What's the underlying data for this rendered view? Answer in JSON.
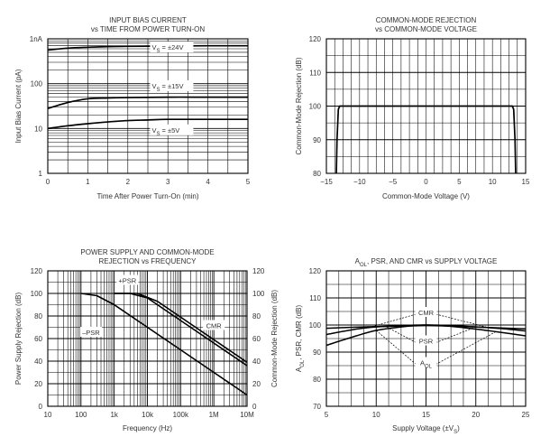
{
  "chart_data": [
    {
      "id": "bias",
      "type": "line",
      "title": [
        "INPUT BIAS CURRENT",
        "vs TIME FROM POWER TURN-ON"
      ],
      "xlabel": "Time After Power Turn-On (min)",
      "ylabel": "Input Bias Current (pA)",
      "x_scale": "linear",
      "y_scale": "log",
      "xlim": [
        0,
        5
      ],
      "ylim": [
        1,
        1000
      ],
      "x_ticks": [
        "0",
        "1",
        "2",
        "3",
        "4",
        "5"
      ],
      "y_tick_values": [
        1,
        10,
        100,
        1000
      ],
      "y_ticks": [
        "1",
        "10",
        "100",
        "1nA"
      ],
      "grid": true,
      "series": [
        {
          "name": "V_S = ±24V",
          "label": "V",
          "sub": "S",
          "rest": " = ±24V",
          "label_at": [
            2.6,
            600
          ],
          "color": "#000000",
          "x": [
            0,
            0.5,
            1,
            1.5,
            2,
            3,
            4,
            5
          ],
          "y": [
            560,
            620,
            650,
            670,
            680,
            690,
            700,
            700
          ]
        },
        {
          "name": "V_S = ±15V",
          "label": "V",
          "sub": "S",
          "rest": " = ±15V",
          "label_at": [
            2.6,
            82
          ],
          "color": "#000000",
          "x": [
            0,
            0.5,
            1,
            1.5,
            2,
            3,
            4,
            5
          ],
          "y": [
            28,
            38,
            46,
            48,
            49,
            50,
            50,
            50
          ]
        },
        {
          "name": "V_S = ±5V",
          "label": "V",
          "sub": "S",
          "rest": " = ±5V",
          "label_at": [
            2.6,
            8.5
          ],
          "color": "#000000",
          "x": [
            0,
            0.5,
            1,
            1.5,
            2,
            2.5,
            3,
            4,
            5
          ],
          "y": [
            10,
            11.5,
            12.8,
            14,
            15,
            15.5,
            16,
            16,
            16
          ]
        }
      ]
    },
    {
      "id": "cmr",
      "type": "line",
      "title": [
        "COMMON-MODE REJECTION",
        "vs COMMON-MODE VOLTAGE"
      ],
      "xlabel": "Common-Mode Voltage (V)",
      "ylabel": "Common-Mode Rejection (dB)",
      "xlim": [
        -15,
        15
      ],
      "ylim": [
        80,
        120
      ],
      "x_ticks": [
        "−15",
        "−10",
        "−5",
        "0",
        "5",
        "10",
        "15"
      ],
      "y_ticks": [
        "80",
        "90",
        "100",
        "110",
        "120"
      ],
      "grid": true,
      "series": [
        {
          "color": "#000000",
          "x": [
            -13.5,
            -13.4,
            -13.2,
            -13.0,
            0,
            13.0,
            13.2,
            13.4,
            13.5
          ],
          "y": [
            80,
            90,
            99,
            100,
            100,
            100,
            99,
            90,
            80
          ]
        }
      ]
    },
    {
      "id": "psr",
      "type": "line",
      "title": [
        "POWER SUPPLY AND COMMON-MODE",
        "REJECTION vs FREQUENCY"
      ],
      "xlabel": "Frequency (Hz)",
      "ylabel": "Power Supply Rejection (dB)",
      "ylabel_right": "Common-Mode Rejection (dB)",
      "x_scale": "log",
      "xlim": [
        10,
        10000000
      ],
      "ylim": [
        0,
        120
      ],
      "x_tick_values": [
        10,
        100,
        1000,
        10000,
        100000,
        1000000,
        10000000
      ],
      "x_ticks": [
        "10",
        "100",
        "1k",
        "10k",
        "100k",
        "1M",
        "10M"
      ],
      "y_ticks": [
        "0",
        "20",
        "40",
        "60",
        "80",
        "100",
        "120"
      ],
      "grid": true,
      "labels": [
        {
          "text": "+PSR",
          "at": [
            2500,
            110
          ]
        },
        {
          "text": "–PSR",
          "at": [
            200,
            64
          ]
        },
        {
          "text": "CMR",
          "at": [
            1000000,
            70
          ]
        }
      ],
      "series": [
        {
          "name": "+PSR",
          "color": "#000000",
          "x": [
            1000,
            3000,
            10000,
            100000,
            1000000,
            10000000
          ],
          "y": [
            100,
            100,
            96,
            76,
            56,
            36
          ]
        },
        {
          "name": "–PSR",
          "color": "#000000",
          "x": [
            100,
            300,
            1000,
            10000,
            100000,
            1000000,
            10000000
          ],
          "y": [
            100,
            98,
            90,
            70,
            50,
            30,
            10
          ]
        },
        {
          "name": "CMR",
          "color": "#000000",
          "x": [
            1000,
            5000,
            20000,
            100000,
            1000000,
            10000000
          ],
          "y": [
            100,
            100,
            93,
            79,
            59,
            39
          ]
        }
      ]
    },
    {
      "id": "aol",
      "type": "line",
      "title": [
        "A",
        "OL",
        ", PSR, AND CMR vs SUPPLY VOLTAGE"
      ],
      "xlabel": "Supply Voltage (±V",
      "xlabel_sub": "S",
      "xlabel_end": ")",
      "ylabel": "A",
      "ylabel_sub": "OL",
      "ylabel_rest": ", PSR, CMR (dB)",
      "xlim": [
        5,
        25
      ],
      "ylim": [
        70,
        120
      ],
      "x_ticks": [
        "5",
        "10",
        "15",
        "20",
        "25"
      ],
      "y_ticks": [
        "70",
        "80",
        "90",
        "100",
        "110",
        "120"
      ],
      "grid": true,
      "labels": [
        {
          "text": "CMR",
          "at": [
            15,
            104
          ]
        },
        {
          "text": "PSR",
          "at": [
            15,
            93.5
          ]
        },
        {
          "text": "A",
          "sub": "OL",
          "at": [
            15,
            85.5
          ]
        }
      ],
      "series": [
        {
          "name": "CMR",
          "color": "#000000",
          "x": [
            5,
            8,
            10,
            12.5,
            15,
            17.5,
            20,
            22.5,
            25
          ],
          "y": [
            96.5,
            98.5,
            99.3,
            99.8,
            100,
            99.8,
            99.3,
            98.7,
            97.8
          ]
        },
        {
          "name": "PSR",
          "color": "#000000",
          "x": [
            5,
            8,
            10,
            12.5,
            15,
            17.5,
            20,
            22.5,
            25
          ],
          "y": [
            98.8,
            99.2,
            99.4,
            99.6,
            99.8,
            99.6,
            99.3,
            98.9,
            98.6
          ]
        },
        {
          "name": "AOL",
          "color": "#000000",
          "x": [
            5,
            8,
            10,
            12.5,
            15,
            17.5,
            20,
            22.5,
            25
          ],
          "y": [
            92.5,
            96,
            98,
            99.3,
            100,
            99.5,
            98.5,
            97.3,
            96
          ]
        }
      ]
    }
  ]
}
